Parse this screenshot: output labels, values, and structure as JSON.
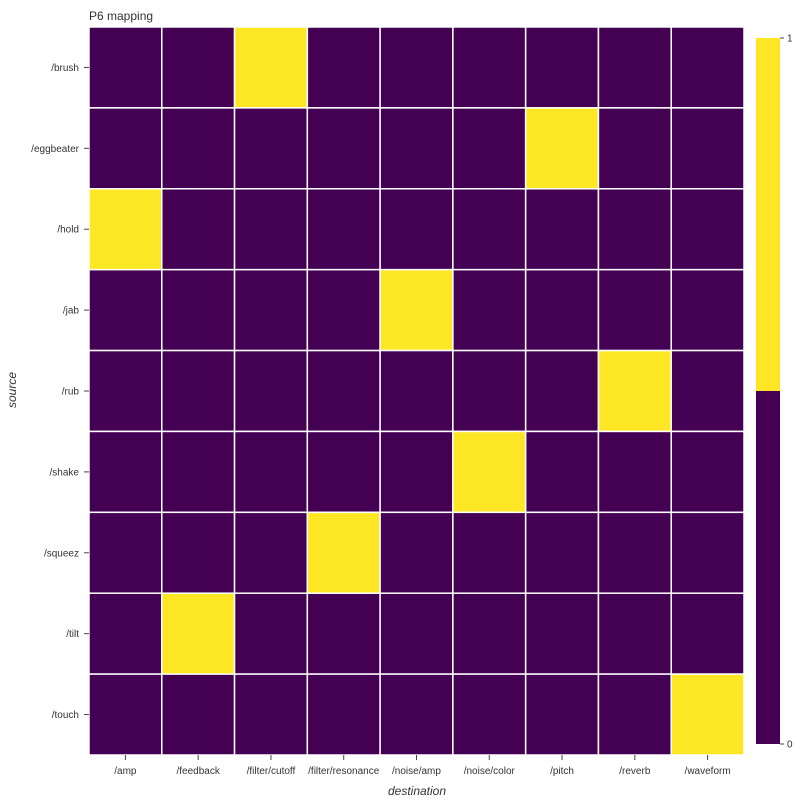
{
  "chart_data": {
    "type": "heatmap",
    "title": "P6 mapping",
    "xlabel": "destination",
    "ylabel": "source",
    "x_categories": [
      "/amp",
      "/feedback",
      "/filter/cutoff",
      "/filter/resonance",
      "/noise/amp",
      "/noise/color",
      "/pitch",
      "/reverb",
      "/waveform"
    ],
    "y_categories": [
      "/brush",
      "/eggbeater",
      "/hold",
      "/jab",
      "/rub",
      "/shake",
      "/squeez",
      "/tilt",
      "/touch"
    ],
    "values": [
      [
        0,
        0,
        1,
        0,
        0,
        0,
        0,
        0,
        0
      ],
      [
        0,
        0,
        0,
        0,
        0,
        0,
        1,
        0,
        0
      ],
      [
        1,
        0,
        0,
        0,
        0,
        0,
        0,
        0,
        0
      ],
      [
        0,
        0,
        0,
        0,
        1,
        0,
        0,
        0,
        0
      ],
      [
        0,
        0,
        0,
        0,
        0,
        0,
        0,
        1,
        0
      ],
      [
        0,
        0,
        0,
        0,
        0,
        1,
        0,
        0,
        0
      ],
      [
        0,
        0,
        0,
        1,
        0,
        0,
        0,
        0,
        0
      ],
      [
        0,
        1,
        0,
        0,
        0,
        0,
        0,
        0,
        0
      ],
      [
        0,
        0,
        0,
        0,
        0,
        0,
        0,
        0,
        1
      ]
    ],
    "value_range": [
      0,
      1
    ],
    "colors": {
      "low": "#440154",
      "high": "#FDE725",
      "grid": "#ffffff"
    },
    "colorbar": {
      "ticks": [
        "0",
        "1"
      ]
    }
  }
}
